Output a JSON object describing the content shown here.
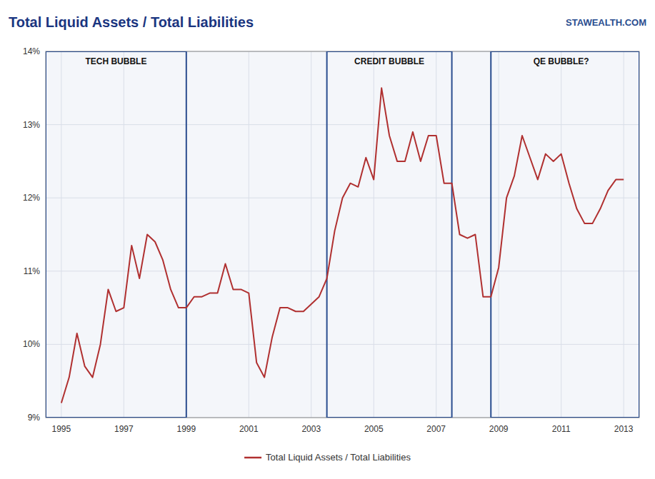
{
  "chart_data": {
    "type": "line",
    "title": "Total Liquid Assets / Total Liabilities",
    "watermark": "STAWEALTH.COM",
    "legend": "bottom",
    "grid": true,
    "xlim": [
      1994.5,
      2013.5
    ],
    "xticks": [
      1995,
      1997,
      1999,
      2001,
      2003,
      2005,
      2007,
      2009,
      2011,
      2013
    ],
    "ylim": [
      0.09,
      0.14
    ],
    "yticks": [
      {
        "value": 0.09,
        "label": "9%"
      },
      {
        "value": 0.1,
        "label": "10%"
      },
      {
        "value": 0.11,
        "label": "11%"
      },
      {
        "value": 0.12,
        "label": "12%"
      },
      {
        "value": 0.13,
        "label": "13%"
      },
      {
        "value": 0.14,
        "label": "14%"
      }
    ],
    "annotations": [
      {
        "label": "TECH BUBBLE",
        "x0": 1994.5,
        "x1": 1999.0,
        "x": 1996.75
      },
      {
        "label": "CREDIT BUBBLE",
        "x0": 2003.5,
        "x1": 2007.5,
        "x": 2005.5
      },
      {
        "label": "QE BUBBLE?",
        "x0": 2008.75,
        "x1": 2013.5,
        "x": 2011.0
      }
    ],
    "x": [
      1995.0,
      1995.25,
      1995.5,
      1995.75,
      1996.0,
      1996.25,
      1996.5,
      1996.75,
      1997.0,
      1997.25,
      1997.5,
      1997.75,
      1998.0,
      1998.25,
      1998.5,
      1998.75,
      1999.0,
      1999.25,
      1999.5,
      1999.75,
      2000.0,
      2000.25,
      2000.5,
      2000.75,
      2001.0,
      2001.25,
      2001.5,
      2001.75,
      2002.0,
      2002.25,
      2002.5,
      2002.75,
      2003.0,
      2003.25,
      2003.5,
      2003.75,
      2004.0,
      2004.25,
      2004.5,
      2004.75,
      2005.0,
      2005.25,
      2005.5,
      2005.75,
      2006.0,
      2006.25,
      2006.5,
      2006.75,
      2007.0,
      2007.25,
      2007.5,
      2007.75,
      2008.0,
      2008.25,
      2008.5,
      2008.75,
      2009.0,
      2009.25,
      2009.5,
      2009.75,
      2010.0,
      2010.25,
      2010.5,
      2010.75,
      2011.0,
      2011.25,
      2011.5,
      2011.75,
      2012.0,
      2012.25,
      2012.5,
      2012.75,
      2013.0
    ],
    "series": [
      {
        "name": "Total Liquid Assets / Total Liabilities",
        "color": "#b03030",
        "values": [
          0.092,
          0.0955,
          0.1015,
          0.097,
          0.0955,
          0.1,
          0.1075,
          0.1045,
          0.105,
          0.1135,
          0.109,
          0.115,
          0.114,
          0.1115,
          0.1075,
          0.105,
          0.105,
          0.1065,
          0.1065,
          0.107,
          0.107,
          0.111,
          0.1075,
          0.1075,
          0.107,
          0.0975,
          0.0955,
          0.101,
          0.105,
          0.105,
          0.1045,
          0.1045,
          0.1055,
          0.1065,
          0.109,
          0.1155,
          0.12,
          0.122,
          0.1215,
          0.1255,
          0.1225,
          0.135,
          0.1285,
          0.125,
          0.125,
          0.129,
          0.125,
          0.1285,
          0.1285,
          0.122,
          0.122,
          0.115,
          0.1145,
          0.115,
          0.1065,
          0.1065,
          0.1105,
          0.12,
          0.123,
          0.1285,
          0.1255,
          0.1225,
          0.126,
          0.125,
          0.126,
          0.122,
          0.1185,
          0.1165,
          0.1165,
          0.1185,
          0.121,
          0.1225,
          0.1225
        ]
      }
    ]
  }
}
